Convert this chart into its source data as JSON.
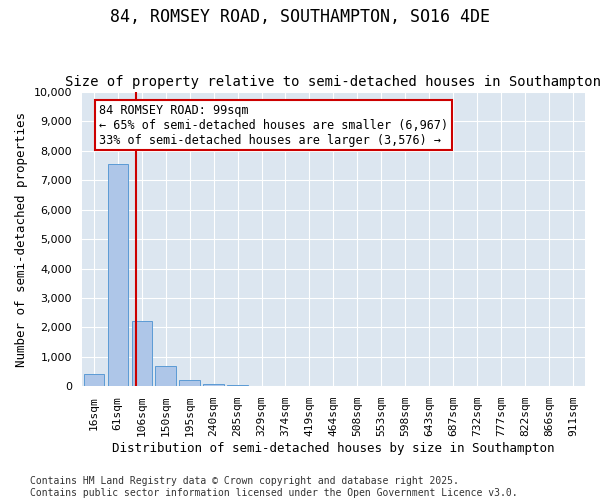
{
  "title": "84, ROMSEY ROAD, SOUTHAMPTON, SO16 4DE",
  "subtitle": "Size of property relative to semi-detached houses in Southampton",
  "xlabel": "Distribution of semi-detached houses by size in Southampton",
  "ylabel": "Number of semi-detached properties",
  "categories": [
    "16sqm",
    "61sqm",
    "106sqm",
    "150sqm",
    "195sqm",
    "240sqm",
    "285sqm",
    "329sqm",
    "374sqm",
    "419sqm",
    "464sqm",
    "508sqm",
    "553sqm",
    "598sqm",
    "643sqm",
    "687sqm",
    "732sqm",
    "777sqm",
    "822sqm",
    "866sqm",
    "911sqm"
  ],
  "values": [
    430,
    7550,
    2230,
    700,
    200,
    70,
    30,
    15,
    8,
    5,
    4,
    3,
    2,
    2,
    1,
    1,
    1,
    1,
    1,
    1,
    1
  ],
  "bar_color": "#aec6e8",
  "bar_edge_color": "#5b9bd5",
  "property_line_x": 1.75,
  "property_line_color": "#cc0000",
  "annotation_text": "84 ROMSEY ROAD: 99sqm\n← 65% of semi-detached houses are smaller (6,967)\n33% of semi-detached houses are larger (3,576) →",
  "annotation_box_color": "#cc0000",
  "ylim": [
    0,
    10000
  ],
  "yticks": [
    0,
    1000,
    2000,
    3000,
    4000,
    5000,
    6000,
    7000,
    8000,
    9000,
    10000
  ],
  "background_color": "#dce6f0",
  "grid_color": "#ffffff",
  "fig_background_color": "#ffffff",
  "footer_text": "Contains HM Land Registry data © Crown copyright and database right 2025.\nContains public sector information licensed under the Open Government Licence v3.0.",
  "title_fontsize": 12,
  "subtitle_fontsize": 10,
  "axis_label_fontsize": 9,
  "tick_fontsize": 8,
  "annotation_fontsize": 8.5,
  "footer_fontsize": 7
}
